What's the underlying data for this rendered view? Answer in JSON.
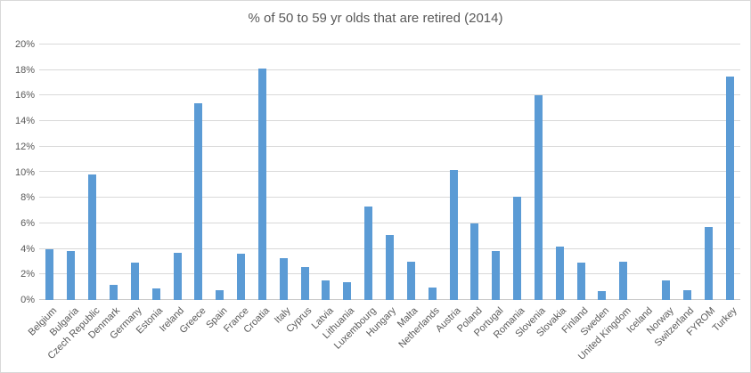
{
  "chart_data": {
    "type": "bar",
    "title": "% of 50 to 59 yr olds that are retired (2014)",
    "xlabel": "",
    "ylabel": "",
    "unit": "%",
    "ylim": [
      0,
      20
    ],
    "grid": true,
    "legend": false,
    "categories": [
      "Belgium",
      "Bulgaria",
      "Czech Republic",
      "Denmark",
      "Germany",
      "Estonia",
      "Ireland",
      "Greece",
      "Spain",
      "France",
      "Croatia",
      "Italy",
      "Cyprus",
      "Latvia",
      "Lithuania",
      "Luxembourg",
      "Hungary",
      "Malta",
      "Netherlands",
      "Austria",
      "Poland",
      "Portugal",
      "Romania",
      "Slovenia",
      "Slovakia",
      "Finland",
      "Sweden",
      "United Kingdom",
      "Iceland",
      "Norway",
      "Switzerland",
      "FYROM",
      "Turkey"
    ],
    "values": [
      4.0,
      3.8,
      9.8,
      1.2,
      2.9,
      0.9,
      3.7,
      15.4,
      0.8,
      3.6,
      18.1,
      3.3,
      2.6,
      1.5,
      1.4,
      7.3,
      5.1,
      3.0,
      1.0,
      10.2,
      6.0,
      3.8,
      8.1,
      16.0,
      4.2,
      2.9,
      0.7,
      3.0,
      0.0,
      1.5,
      0.8,
      5.7,
      17.5
    ],
    "y_ticks": [
      {
        "label": "0%",
        "value": 0
      },
      {
        "label": "2%",
        "value": 2
      },
      {
        "label": "4%",
        "value": 4
      },
      {
        "label": "6%",
        "value": 6
      },
      {
        "label": "8%",
        "value": 8
      },
      {
        "label": "10%",
        "value": 10
      },
      {
        "label": "12%",
        "value": 12
      },
      {
        "label": "14%",
        "value": 14
      },
      {
        "label": "16%",
        "value": 16
      },
      {
        "label": "18%",
        "value": 18
      },
      {
        "label": "20%",
        "value": 20
      }
    ],
    "colors": {
      "bar": "#5B9BD5",
      "gridline": "#D9D9D9",
      "axis_line": "#C9C9C9",
      "text": "#595959",
      "chart_border": "#D9D9D9",
      "background": "#FFFFFF"
    }
  }
}
